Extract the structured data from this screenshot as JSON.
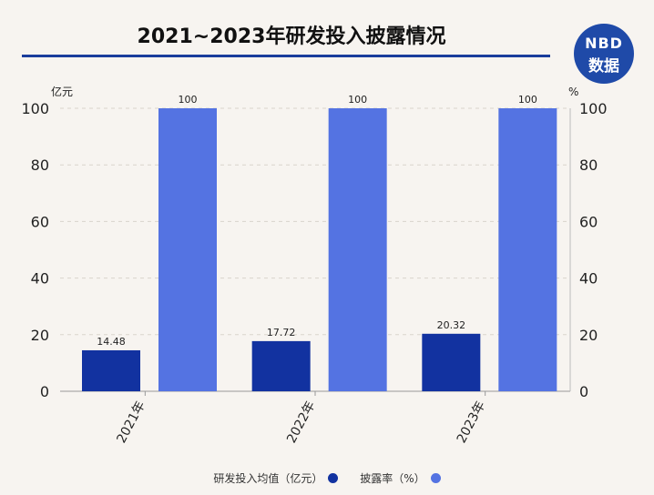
{
  "chart_data": {
    "type": "bar",
    "title": "2021~2023年研发投入披露情况",
    "categories": [
      "2021年",
      "2022年",
      "2023年"
    ],
    "series": [
      {
        "name": "研发投入均值（亿元）",
        "values": [
          14.48,
          17.72,
          20.32
        ],
        "color": "#1232a0",
        "axis": "left"
      },
      {
        "name": "披露率（%）",
        "values": [
          100,
          100,
          100
        ],
        "color": "#5473e2",
        "axis": "right"
      }
    ],
    "y_left": {
      "label": "亿元",
      "ticks": [
        0,
        20,
        40,
        60,
        80,
        100
      ],
      "range": [
        0,
        100
      ]
    },
    "y_right": {
      "label": "%",
      "ticks": [
        0,
        20,
        40,
        60,
        80,
        100
      ],
      "range": [
        0,
        100
      ]
    },
    "grid": true,
    "legend_position": "bottom"
  },
  "logo": {
    "line1": "NBD",
    "line2": "数据"
  }
}
